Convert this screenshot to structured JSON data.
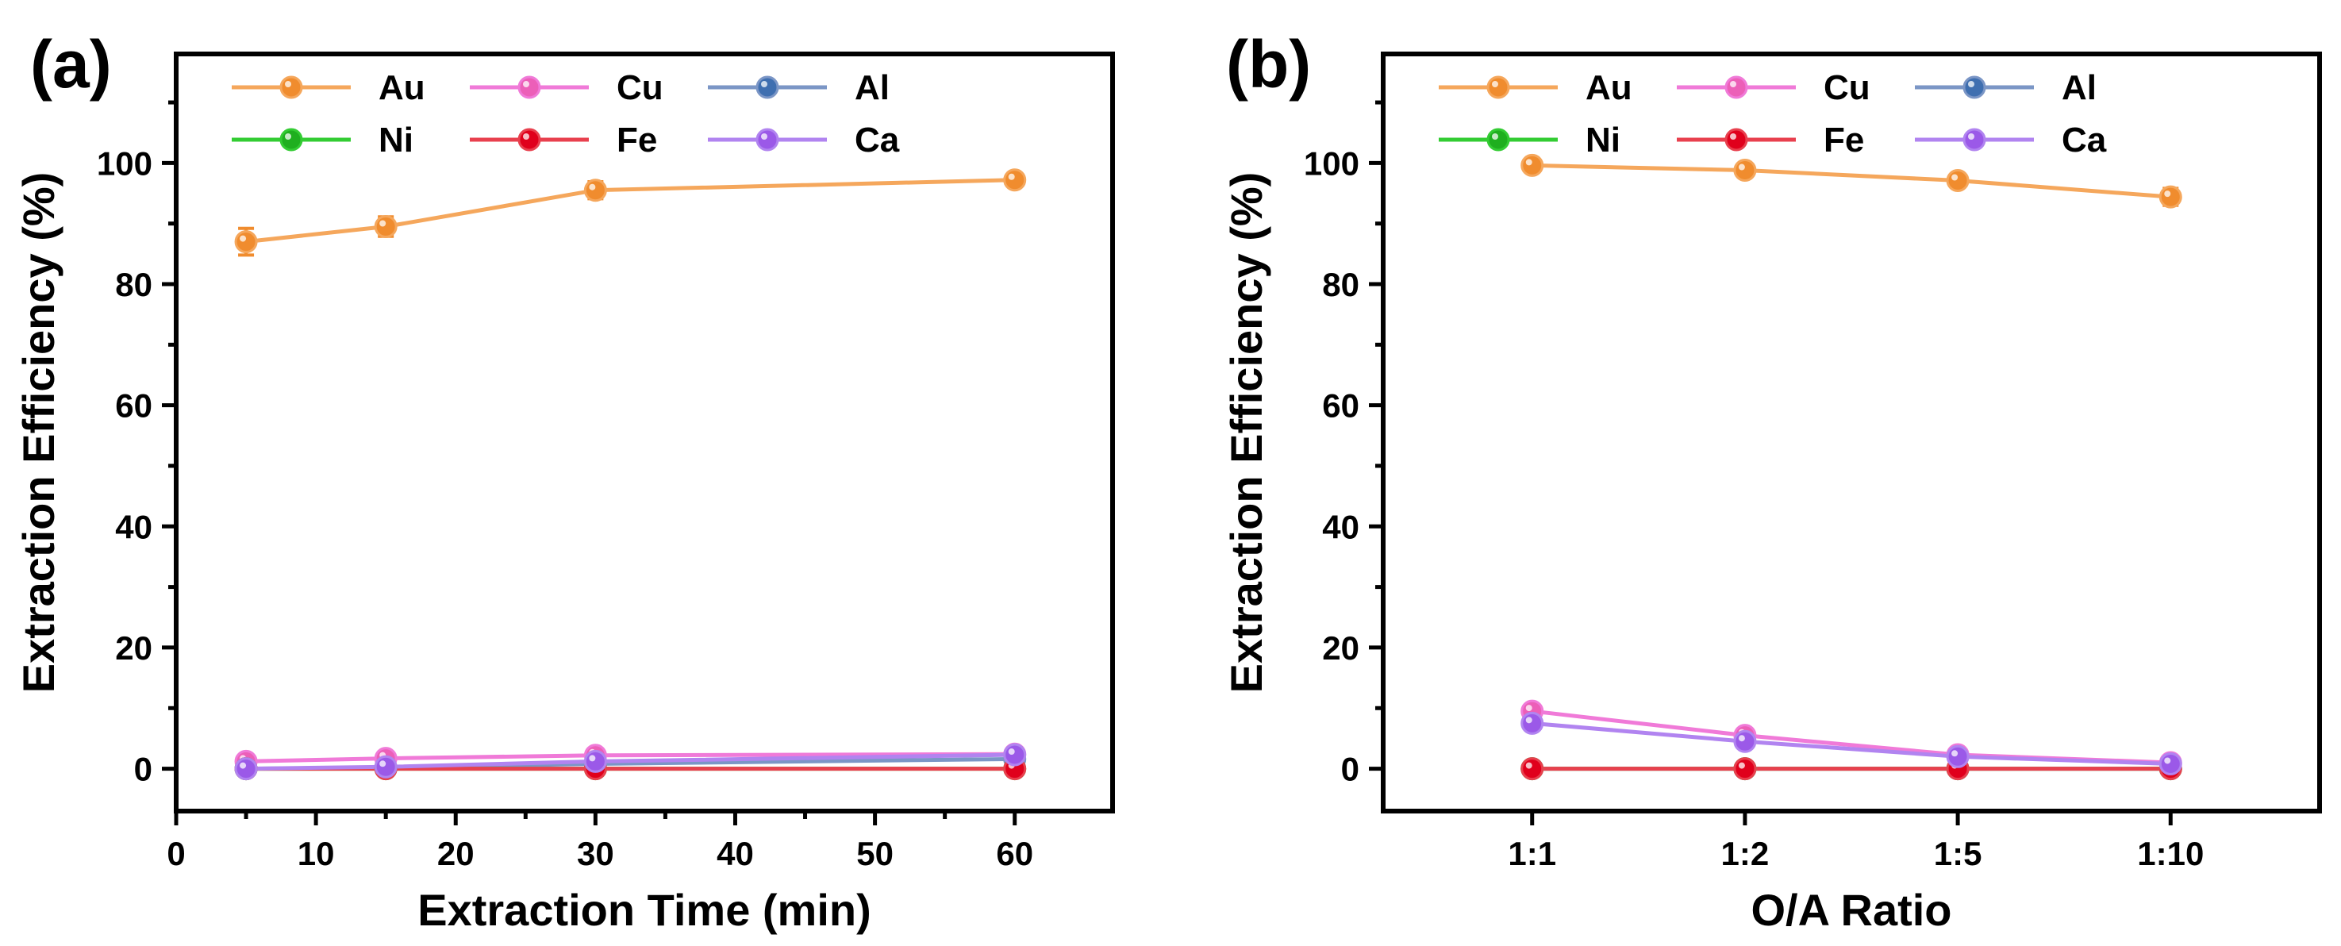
{
  "chart_data": [
    {
      "panel_label": "(a)",
      "type": "line",
      "xlabel": "Extraction Time (min)",
      "ylabel": "Extraction Efficiency (%)",
      "x": [
        5,
        15,
        30,
        60
      ],
      "xlim": [
        0,
        67
      ],
      "ylim": [
        -7,
        118
      ],
      "xticks": [
        0,
        10,
        20,
        30,
        40,
        50,
        60
      ],
      "xtick_labels": [
        "0",
        "10",
        "20",
        "30",
        "40",
        "50",
        "60"
      ],
      "yticks": [
        0,
        20,
        40,
        60,
        80,
        100
      ],
      "ytick_labels": [
        "0",
        "20",
        "40",
        "60",
        "80",
        "100"
      ],
      "legend_position": "top-left",
      "series": [
        {
          "name": "Au",
          "color": "#f5a75c",
          "marker": "#f08c2e",
          "values": [
            87,
            89.5,
            95.5,
            97.2
          ],
          "errors": [
            2.2,
            1.6,
            1.4,
            1.0
          ]
        },
        {
          "name": "Cu",
          "color": "#f07ad8",
          "marker": "#ec5fb8",
          "values": [
            1.2,
            1.7,
            2.2,
            2.4
          ],
          "errors": [
            0.4,
            0.4,
            0.4,
            0.4
          ]
        },
        {
          "name": "Al",
          "color": "#7b96c6",
          "marker": "#3f6fb0",
          "values": [
            0,
            0.2,
            0.8,
            1.6
          ],
          "errors": [
            0.2,
            0.2,
            0.2,
            0.2
          ]
        },
        {
          "name": "Ni",
          "color": "#33cc33",
          "marker": "#1faf1f",
          "values": [
            0,
            0,
            0,
            0
          ],
          "errors": [
            0.2,
            0.2,
            0.2,
            0.2
          ]
        },
        {
          "name": "Fe",
          "color": "#e8404e",
          "marker": "#e0001c",
          "values": [
            0,
            0,
            0,
            0
          ],
          "errors": [
            0.2,
            0.2,
            0.2,
            0.2
          ]
        },
        {
          "name": "Ca",
          "color": "#b184f0",
          "marker": "#9b59e8",
          "values": [
            0,
            0.3,
            1.2,
            2.3
          ],
          "errors": [
            0.3,
            0.3,
            0.3,
            0.3
          ]
        }
      ]
    },
    {
      "panel_label": "(b)",
      "type": "line",
      "xlabel": "O/A Ratio",
      "ylabel": "Extraction Efficiency (%)",
      "x": [
        1,
        2,
        3,
        4
      ],
      "categories": [
        "1:1",
        "1:2",
        "1:5",
        "1:10"
      ],
      "xlim": [
        0.3,
        4.7
      ],
      "ylim": [
        -7,
        118
      ],
      "xticks": [
        1,
        2,
        3,
        4
      ],
      "xtick_labels": [
        "1:1",
        "1:2",
        "1:5",
        "1:10"
      ],
      "yticks": [
        0,
        20,
        40,
        60,
        80,
        100
      ],
      "ytick_labels": [
        "0",
        "20",
        "40",
        "60",
        "80",
        "100"
      ],
      "legend_position": "top-left",
      "series": [
        {
          "name": "Au",
          "color": "#f5a75c",
          "marker": "#f08c2e",
          "values": [
            99.6,
            98.8,
            97.1,
            94.4
          ],
          "errors": [
            0.8,
            0.8,
            0.8,
            1.4
          ]
        },
        {
          "name": "Cu",
          "color": "#f07ad8",
          "marker": "#ec5fb8",
          "values": [
            9.5,
            5.5,
            2.3,
            1.0
          ],
          "errors": [
            0.5,
            0.5,
            0.4,
            0.3
          ]
        },
        {
          "name": "Al",
          "color": "#7b96c6",
          "marker": "#3f6fb0",
          "values": [
            0,
            0,
            0,
            0
          ],
          "errors": [
            0.2,
            0.2,
            0.2,
            0.2
          ]
        },
        {
          "name": "Ni",
          "color": "#33cc33",
          "marker": "#1faf1f",
          "values": [
            0,
            0,
            0,
            0
          ],
          "errors": [
            0.2,
            0.2,
            0.2,
            0.2
          ]
        },
        {
          "name": "Fe",
          "color": "#e8404e",
          "marker": "#e0001c",
          "values": [
            0,
            0,
            0,
            0
          ],
          "errors": [
            0.2,
            0.2,
            0.2,
            0.2
          ]
        },
        {
          "name": "Ca",
          "color": "#b184f0",
          "marker": "#9b59e8",
          "values": [
            7.5,
            4.5,
            2.0,
            0.8
          ],
          "errors": [
            0.4,
            0.4,
            0.3,
            0.3
          ]
        }
      ]
    }
  ]
}
